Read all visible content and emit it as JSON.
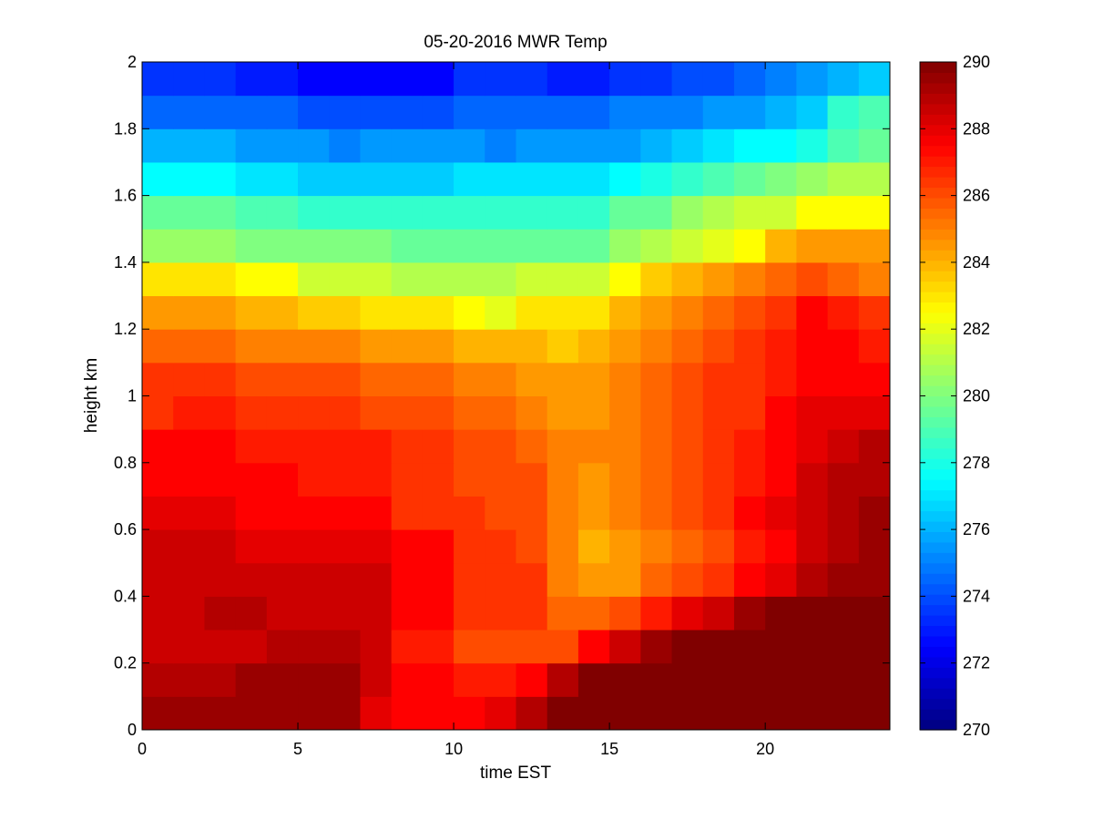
{
  "chart_data": {
    "type": "heatmap",
    "title": "05-20-2016 MWR Temp",
    "xlabel": "time EST",
    "ylabel": "height km",
    "xlim": [
      0,
      24
    ],
    "ylim": [
      0,
      2
    ],
    "xticks": [
      0,
      5,
      10,
      15,
      20
    ],
    "yticks": [
      0,
      0.2,
      0.4,
      0.6,
      0.8,
      1,
      1.2,
      1.4,
      1.6,
      1.8,
      2
    ],
    "colorbar": {
      "min": 270,
      "max": 290,
      "ticks": [
        270,
        272,
        274,
        276,
        278,
        280,
        282,
        284,
        286,
        288,
        290
      ],
      "colormap": "jet"
    },
    "x": [
      0,
      1,
      2,
      3,
      4,
      5,
      6,
      7,
      8,
      9,
      10,
      11,
      12,
      13,
      14,
      15,
      16,
      17,
      18,
      19,
      20,
      21,
      22,
      23
    ],
    "y": [
      0,
      0.1,
      0.2,
      0.3,
      0.4,
      0.5,
      0.6,
      0.7,
      0.8,
      0.9,
      1.0,
      1.1,
      1.2,
      1.3,
      1.4,
      1.5,
      1.6,
      1.7,
      1.8,
      1.9
    ],
    "z": [
      [
        289.5,
        289.5,
        289.5,
        289.5,
        289.5,
        289.5,
        289.5,
        288.0,
        287.5,
        287.5,
        287.5,
        288.0,
        289.0,
        290.0,
        290.0,
        290.0,
        290.0,
        290.0,
        290.0,
        290.0,
        290.0,
        290.0,
        290.0,
        290.0
      ],
      [
        289.0,
        289.0,
        289.0,
        289.5,
        289.5,
        289.5,
        289.5,
        288.5,
        287.5,
        287.5,
        287.0,
        287.0,
        287.5,
        289.0,
        290.0,
        290.0,
        290.0,
        290.0,
        290.0,
        290.0,
        290.0,
        290.0,
        290.0,
        290.0
      ],
      [
        288.5,
        288.5,
        288.5,
        288.5,
        289.0,
        289.0,
        289.0,
        288.5,
        287.0,
        287.0,
        286.0,
        286.0,
        286.0,
        286.0,
        287.5,
        288.5,
        289.5,
        290.0,
        290.0,
        290.0,
        290.0,
        290.0,
        290.0,
        290.0
      ],
      [
        288.5,
        288.5,
        289.0,
        289.0,
        288.5,
        288.5,
        288.5,
        288.5,
        287.5,
        287.5,
        286.5,
        286.5,
        286.5,
        285.5,
        285.5,
        286.0,
        287.0,
        288.0,
        288.5,
        289.5,
        290.0,
        290.0,
        290.0,
        290.0
      ],
      [
        288.5,
        288.5,
        288.5,
        288.5,
        288.5,
        288.5,
        288.5,
        288.5,
        287.5,
        287.5,
        286.5,
        286.5,
        286.5,
        285.0,
        284.5,
        284.5,
        285.5,
        286.0,
        286.5,
        287.5,
        288.0,
        289.0,
        289.5,
        289.5
      ],
      [
        288.5,
        288.5,
        288.5,
        288.0,
        288.0,
        288.0,
        288.0,
        288.0,
        287.5,
        287.5,
        286.5,
        286.5,
        286.0,
        285.0,
        284.0,
        284.5,
        285.0,
        285.5,
        286.0,
        287.0,
        287.5,
        288.5,
        289.0,
        289.5
      ],
      [
        288.0,
        288.0,
        288.0,
        287.5,
        287.5,
        287.5,
        287.5,
        287.5,
        286.5,
        286.5,
        286.5,
        286.0,
        286.0,
        285.0,
        284.5,
        285.0,
        285.5,
        286.0,
        286.5,
        287.5,
        288.0,
        288.5,
        289.0,
        289.5
      ],
      [
        287.5,
        287.5,
        287.5,
        287.5,
        287.5,
        287.0,
        287.0,
        287.0,
        286.5,
        286.5,
        286.0,
        286.0,
        286.0,
        285.0,
        284.5,
        285.0,
        285.5,
        286.0,
        286.5,
        287.0,
        287.5,
        288.5,
        289.0,
        289.0
      ],
      [
        287.5,
        287.5,
        287.5,
        287.0,
        287.0,
        287.0,
        287.0,
        287.0,
        286.5,
        286.5,
        286.0,
        286.0,
        285.5,
        285.0,
        285.0,
        285.0,
        285.5,
        286.0,
        286.5,
        287.0,
        287.5,
        288.0,
        288.5,
        289.0
      ],
      [
        286.5,
        287.0,
        287.0,
        286.5,
        286.5,
        286.5,
        286.5,
        286.0,
        286.0,
        286.0,
        285.5,
        285.5,
        285.0,
        284.5,
        284.5,
        285.0,
        285.5,
        286.0,
        286.5,
        286.5,
        287.5,
        288.0,
        288.0,
        288.0
      ],
      [
        286.5,
        286.5,
        286.5,
        286.0,
        286.0,
        286.0,
        286.0,
        285.5,
        285.5,
        285.5,
        285.0,
        285.0,
        284.5,
        284.5,
        284.5,
        285.0,
        285.5,
        286.0,
        286.5,
        286.5,
        287.0,
        287.5,
        287.5,
        287.5
      ],
      [
        285.5,
        285.5,
        285.5,
        285.0,
        285.0,
        285.0,
        285.0,
        284.5,
        284.5,
        284.5,
        284.0,
        284.0,
        284.0,
        283.5,
        284.0,
        284.5,
        285.0,
        285.5,
        286.0,
        286.5,
        287.0,
        287.5,
        287.5,
        287.0
      ],
      [
        284.5,
        284.5,
        284.5,
        284.0,
        284.0,
        283.5,
        283.5,
        283.0,
        283.0,
        283.0,
        282.5,
        282.0,
        283.0,
        283.0,
        283.0,
        284.0,
        284.5,
        285.0,
        285.5,
        286.0,
        286.5,
        287.5,
        287.0,
        286.5
      ],
      [
        283.0,
        283.0,
        283.0,
        282.5,
        282.5,
        281.5,
        281.5,
        281.5,
        281.0,
        281.0,
        281.0,
        281.0,
        281.5,
        281.5,
        281.5,
        282.5,
        283.5,
        284.0,
        284.5,
        285.0,
        285.5,
        286.0,
        285.5,
        285.0
      ],
      [
        280.5,
        280.5,
        280.5,
        280.0,
        280.0,
        280.0,
        280.0,
        280.0,
        279.5,
        279.5,
        279.5,
        279.5,
        279.5,
        279.5,
        279.5,
        280.5,
        281.0,
        281.5,
        282.0,
        282.5,
        284.0,
        284.5,
        284.5,
        284.5
      ],
      [
        279.5,
        279.5,
        279.5,
        279.0,
        279.0,
        278.5,
        278.5,
        278.5,
        278.5,
        278.5,
        278.5,
        278.5,
        278.5,
        278.5,
        278.5,
        279.5,
        279.5,
        280.5,
        281.0,
        281.5,
        281.5,
        282.5,
        282.5,
        282.5
      ],
      [
        277.5,
        277.5,
        277.5,
        277.0,
        277.0,
        276.5,
        276.5,
        276.5,
        276.5,
        276.5,
        277.0,
        277.0,
        277.0,
        277.0,
        277.0,
        277.5,
        278.0,
        278.5,
        279.0,
        279.5,
        280.0,
        280.5,
        281.0,
        281.0
      ],
      [
        276.0,
        276.0,
        276.0,
        275.5,
        275.5,
        275.5,
        275.0,
        275.5,
        275.5,
        275.5,
        275.5,
        275.0,
        275.5,
        275.5,
        275.5,
        275.5,
        276.0,
        276.5,
        277.0,
        277.5,
        277.5,
        278.0,
        279.0,
        279.5
      ],
      [
        274.5,
        274.5,
        274.5,
        274.5,
        274.5,
        274.0,
        274.0,
        274.0,
        274.0,
        274.0,
        274.5,
        274.5,
        274.5,
        274.5,
        274.5,
        275.0,
        275.0,
        275.0,
        275.5,
        275.5,
        276.0,
        276.5,
        278.5,
        279.0
      ],
      [
        273.5,
        273.5,
        273.5,
        273.0,
        273.0,
        272.5,
        272.5,
        272.5,
        272.5,
        272.5,
        273.5,
        273.5,
        273.5,
        273.0,
        273.0,
        273.5,
        273.5,
        274.0,
        274.0,
        274.5,
        275.0,
        275.5,
        276.0,
        276.5
      ]
    ]
  }
}
